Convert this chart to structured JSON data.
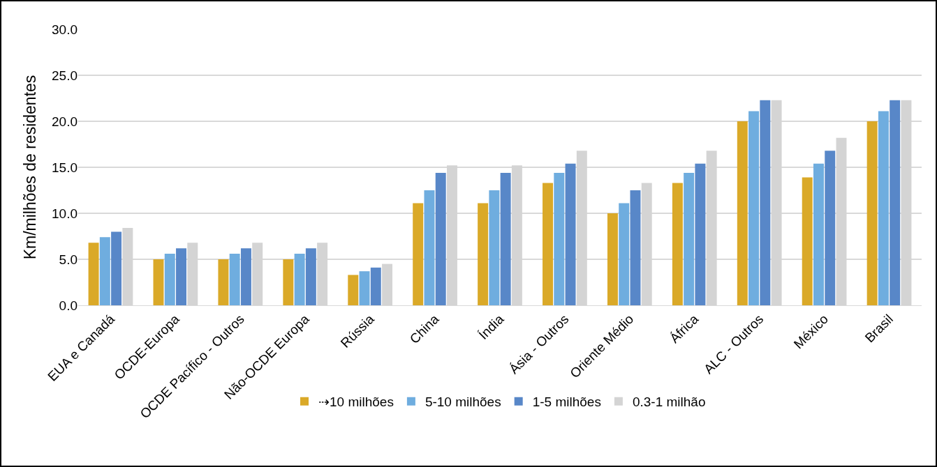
{
  "chart_data": {
    "type": "bar",
    "ylabel": "Km/milhões de residentes",
    "categories": [
      "EUA e Canadá",
      "OCDE-Europa",
      "OCDE Pacífico - Outros",
      "Não-OCDE Europa",
      "Rússia",
      "China",
      "Índia",
      "Ásia - Outros",
      "Oriente Médio",
      "África",
      "ALC - Outros",
      "México",
      "Brasil"
    ],
    "series": [
      {
        "name": "⇢10 milhões",
        "color": "#daa928",
        "values": [
          6.8,
          5.0,
          5.0,
          5.0,
          3.3,
          11.1,
          11.1,
          13.3,
          10.0,
          13.3,
          20.0,
          13.9,
          20.0
        ]
      },
      {
        "name": "5-10 milhões",
        "color": "#6faddf",
        "values": [
          7.4,
          5.6,
          5.6,
          5.6,
          3.7,
          12.5,
          12.5,
          14.4,
          11.1,
          14.4,
          21.1,
          15.4,
          21.1
        ]
      },
      {
        "name": "1-5 milhões",
        "color": "#5887c8",
        "values": [
          8.0,
          6.2,
          6.2,
          6.2,
          4.1,
          14.4,
          14.4,
          15.4,
          12.5,
          15.4,
          22.3,
          16.8,
          22.3
        ]
      },
      {
        "name": "0.3-1 milhão",
        "color": "#d4d4d4",
        "values": [
          8.4,
          6.8,
          6.8,
          6.8,
          4.5,
          15.2,
          15.2,
          16.8,
          13.3,
          16.8,
          22.3,
          18.2,
          22.3
        ]
      }
    ],
    "ylim": [
      0,
      30
    ],
    "yticks": [
      {
        "value": 0,
        "label": "0.0"
      },
      {
        "value": 5,
        "label": "5.0"
      },
      {
        "value": 10,
        "label": "10.0"
      },
      {
        "value": 15,
        "label": "15.0"
      },
      {
        "value": 20,
        "label": "20.0"
      },
      {
        "value": 25,
        "label": "25.0"
      },
      {
        "value": 30,
        "label": "30.0"
      }
    ],
    "grid": "y",
    "legend": "bottom"
  }
}
